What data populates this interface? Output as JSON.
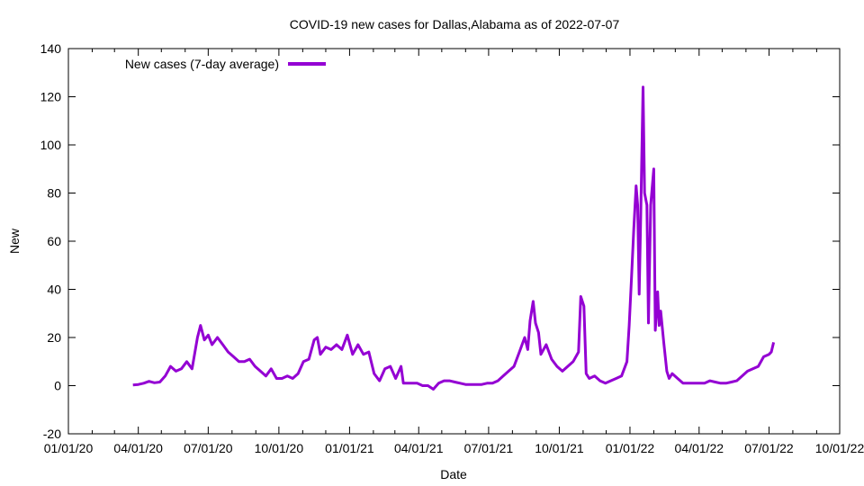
{
  "chart_data": {
    "type": "line",
    "title": "COVID-19 new cases for Dallas,Alabama as of 2022-07-07",
    "xlabel": "Date",
    "ylabel": "New",
    "xlim": [
      "2020-01-01",
      "2022-10-01"
    ],
    "ylim": [
      -20,
      140
    ],
    "x_ticks": [
      "01/01/20",
      "04/01/20",
      "07/01/20",
      "10/01/20",
      "01/01/21",
      "04/01/21",
      "07/01/21",
      "10/01/21",
      "01/01/22",
      "04/01/22",
      "07/01/22",
      "10/01/22"
    ],
    "y_ticks": [
      -20,
      0,
      20,
      40,
      60,
      80,
      100,
      120,
      140
    ],
    "grid": false,
    "legend_position": "top-left",
    "colors": {
      "series": "#9400d3",
      "axis": "#000000"
    },
    "series": [
      {
        "name": "New cases (7-day average)",
        "points": [
          [
            "2020-03-25",
            0.3
          ],
          [
            "2020-04-01",
            0.5
          ],
          [
            "2020-04-08",
            1.0
          ],
          [
            "2020-04-15",
            1.8
          ],
          [
            "2020-04-22",
            1.2
          ],
          [
            "2020-04-29",
            1.5
          ],
          [
            "2020-05-06",
            4.0
          ],
          [
            "2020-05-13",
            8.0
          ],
          [
            "2020-05-20",
            6.0
          ],
          [
            "2020-05-27",
            7.0
          ],
          [
            "2020-06-03",
            10.0
          ],
          [
            "2020-06-10",
            7.0
          ],
          [
            "2020-06-17",
            20.0
          ],
          [
            "2020-06-21",
            25.0
          ],
          [
            "2020-06-26",
            19.0
          ],
          [
            "2020-07-01",
            21.0
          ],
          [
            "2020-07-06",
            17.0
          ],
          [
            "2020-07-13",
            20.0
          ],
          [
            "2020-07-20",
            17.0
          ],
          [
            "2020-07-27",
            14.0
          ],
          [
            "2020-08-03",
            12.0
          ],
          [
            "2020-08-10",
            10.0
          ],
          [
            "2020-08-17",
            10.0
          ],
          [
            "2020-08-24",
            11.0
          ],
          [
            "2020-08-31",
            8.0
          ],
          [
            "2020-09-07",
            6.0
          ],
          [
            "2020-09-14",
            4.0
          ],
          [
            "2020-09-21",
            7.0
          ],
          [
            "2020-09-28",
            3.0
          ],
          [
            "2020-10-05",
            3.0
          ],
          [
            "2020-10-12",
            4.0
          ],
          [
            "2020-10-19",
            3.0
          ],
          [
            "2020-10-26",
            5.0
          ],
          [
            "2020-11-02",
            10.0
          ],
          [
            "2020-11-09",
            11.0
          ],
          [
            "2020-11-16",
            19.0
          ],
          [
            "2020-11-20",
            20.0
          ],
          [
            "2020-11-24",
            13.0
          ],
          [
            "2020-12-01",
            16.0
          ],
          [
            "2020-12-08",
            15.0
          ],
          [
            "2020-12-15",
            17.0
          ],
          [
            "2020-12-22",
            15.0
          ],
          [
            "2020-12-29",
            21.0
          ],
          [
            "2021-01-05",
            13.0
          ],
          [
            "2021-01-12",
            17.0
          ],
          [
            "2021-01-19",
            13.0
          ],
          [
            "2021-01-26",
            14.0
          ],
          [
            "2021-02-02",
            5.0
          ],
          [
            "2021-02-09",
            2.0
          ],
          [
            "2021-02-16",
            7.0
          ],
          [
            "2021-02-23",
            8.0
          ],
          [
            "2021-03-02",
            3.0
          ],
          [
            "2021-03-09",
            8.0
          ],
          [
            "2021-03-12",
            1.0
          ],
          [
            "2021-03-16",
            1.0
          ],
          [
            "2021-03-23",
            1.0
          ],
          [
            "2021-03-30",
            1.0
          ],
          [
            "2021-04-06",
            0.0
          ],
          [
            "2021-04-13",
            0.0
          ],
          [
            "2021-04-20",
            -1.5
          ],
          [
            "2021-04-27",
            1.0
          ],
          [
            "2021-05-04",
            2.0
          ],
          [
            "2021-05-11",
            2.0
          ],
          [
            "2021-05-18",
            1.5
          ],
          [
            "2021-05-25",
            1.0
          ],
          [
            "2021-06-01",
            0.5
          ],
          [
            "2021-06-08",
            0.5
          ],
          [
            "2021-06-15",
            0.5
          ],
          [
            "2021-06-22",
            0.5
          ],
          [
            "2021-06-29",
            1.0
          ],
          [
            "2021-07-06",
            1.0
          ],
          [
            "2021-07-13",
            2.0
          ],
          [
            "2021-07-20",
            4.0
          ],
          [
            "2021-07-27",
            6.0
          ],
          [
            "2021-08-03",
            8.0
          ],
          [
            "2021-08-10",
            14.0
          ],
          [
            "2021-08-17",
            20.0
          ],
          [
            "2021-08-21",
            15.0
          ],
          [
            "2021-08-24",
            27.0
          ],
          [
            "2021-08-28",
            35.0
          ],
          [
            "2021-08-31",
            26.0
          ],
          [
            "2021-09-04",
            22.0
          ],
          [
            "2021-09-07",
            13.0
          ],
          [
            "2021-09-14",
            17.0
          ],
          [
            "2021-09-21",
            11.0
          ],
          [
            "2021-09-28",
            8.0
          ],
          [
            "2021-10-05",
            6.0
          ],
          [
            "2021-10-12",
            8.0
          ],
          [
            "2021-10-19",
            10.0
          ],
          [
            "2021-10-26",
            14.0
          ],
          [
            "2021-10-29",
            37.0
          ],
          [
            "2021-11-02",
            33.0
          ],
          [
            "2021-11-05",
            5.0
          ],
          [
            "2021-11-09",
            3.0
          ],
          [
            "2021-11-16",
            4.0
          ],
          [
            "2021-11-23",
            2.0
          ],
          [
            "2021-11-30",
            1.0
          ],
          [
            "2021-12-07",
            2.0
          ],
          [
            "2021-12-14",
            3.0
          ],
          [
            "2021-12-21",
            4.0
          ],
          [
            "2021-12-28",
            10.0
          ],
          [
            "2021-12-31",
            25.0
          ],
          [
            "2022-01-03",
            45.0
          ],
          [
            "2022-01-06",
            65.0
          ],
          [
            "2022-01-09",
            83.0
          ],
          [
            "2022-01-11",
            75.0
          ],
          [
            "2022-01-13",
            38.0
          ],
          [
            "2022-01-15",
            70.0
          ],
          [
            "2022-01-18",
            124.0
          ],
          [
            "2022-01-20",
            80.0
          ],
          [
            "2022-01-23",
            75.0
          ],
          [
            "2022-01-25",
            26.0
          ],
          [
            "2022-01-28",
            75.0
          ],
          [
            "2022-02-01",
            90.0
          ],
          [
            "2022-02-03",
            23.0
          ],
          [
            "2022-02-06",
            39.0
          ],
          [
            "2022-02-08",
            25.0
          ],
          [
            "2022-02-10",
            31.0
          ],
          [
            "2022-02-14",
            18.0
          ],
          [
            "2022-02-18",
            6.0
          ],
          [
            "2022-02-21",
            3.0
          ],
          [
            "2022-02-25",
            5.0
          ],
          [
            "2022-03-04",
            3.0
          ],
          [
            "2022-03-11",
            1.0
          ],
          [
            "2022-03-18",
            1.0
          ],
          [
            "2022-03-25",
            1.0
          ],
          [
            "2022-04-01",
            1.0
          ],
          [
            "2022-04-08",
            1.0
          ],
          [
            "2022-04-15",
            2.0
          ],
          [
            "2022-04-22",
            1.5
          ],
          [
            "2022-04-29",
            1.0
          ],
          [
            "2022-05-06",
            1.0
          ],
          [
            "2022-05-13",
            1.5
          ],
          [
            "2022-05-20",
            2.0
          ],
          [
            "2022-05-27",
            4.0
          ],
          [
            "2022-06-03",
            6.0
          ],
          [
            "2022-06-10",
            7.0
          ],
          [
            "2022-06-17",
            8.0
          ],
          [
            "2022-06-24",
            12.0
          ],
          [
            "2022-07-01",
            13.0
          ],
          [
            "2022-07-04",
            14.0
          ],
          [
            "2022-07-07",
            18.0
          ]
        ]
      }
    ]
  }
}
